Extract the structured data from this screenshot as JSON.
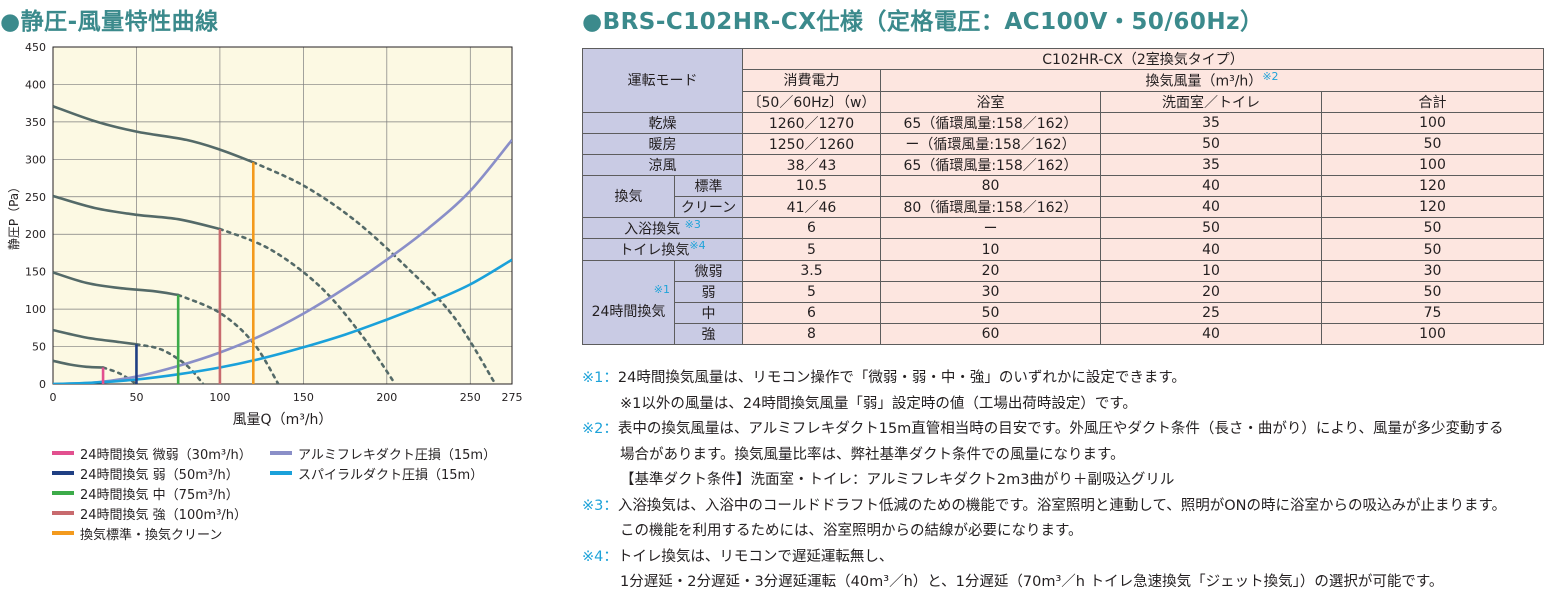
{
  "titles": {
    "chart": "●静圧-風量特性曲線",
    "spec": "●BRS-C102HR-CX仕様（定格電圧：AC100V・50/60Hz）"
  },
  "colors": {
    "plot_bg": "#fcf9e3",
    "fan_curve": "#546a68",
    "aluminum": "#8a8fc8",
    "spiral": "#1aa1da",
    "weak_min": "#e2508f",
    "weak": "#1f3f83",
    "medium": "#3cab49",
    "strong": "#c86a6e",
    "standard": "#f39a1d",
    "title": "#3b8a8c",
    "table_header": "#c9cbe4",
    "table_cell": "#fde6e0",
    "note_mark": "#1fa3d9"
  },
  "chart_data": {
    "type": "line",
    "title": "静圧-風量特性曲線",
    "xlabel": "風量Q（m³/h）",
    "ylabel": "静圧P（Pa）",
    "xlim": [
      0,
      275
    ],
    "ylim": [
      0,
      450
    ],
    "x_ticks": [
      "0",
      "50",
      "100",
      "150",
      "200",
      "250",
      "275"
    ],
    "y_ticks": [
      "0",
      "50",
      "100",
      "150",
      "200",
      "250",
      "300",
      "350",
      "400",
      "450"
    ],
    "grid": true,
    "legend_position": "bottom",
    "series": [
      {
        "name": "24時間換気 微弱（30m³/h）",
        "type": "fan",
        "color_key": "weak_min",
        "x": [
          0,
          10,
          20,
          30
        ],
        "y": [
          31,
          26,
          23,
          22
        ],
        "dashed_x": [
          30,
          40,
          50
        ],
        "dashed_y": [
          22,
          14,
          0
        ]
      },
      {
        "name": "24時間換気 弱（50m³/h）",
        "type": "fan",
        "color_key": "weak",
        "x": [
          0,
          20,
          40,
          50
        ],
        "y": [
          72,
          62,
          56,
          53
        ],
        "dashed_x": [
          50,
          65,
          80,
          90
        ],
        "dashed_y": [
          53,
          46,
          25,
          0
        ]
      },
      {
        "name": "24時間換気 中（75m³/h）",
        "type": "fan",
        "color_key": "medium",
        "x": [
          0,
          20,
          40,
          60,
          75
        ],
        "y": [
          149,
          135,
          128,
          124,
          119
        ],
        "dashed_x": [
          75,
          100,
          120,
          135
        ],
        "dashed_y": [
          119,
          95,
          55,
          0
        ]
      },
      {
        "name": "24時間換気 強（100m³/h）",
        "type": "fan",
        "color_key": "strong",
        "x": [
          0,
          25,
          50,
          75,
          100
        ],
        "y": [
          251,
          235,
          226,
          220,
          207
        ],
        "dashed_x": [
          100,
          130,
          160,
          185,
          205
        ],
        "dashed_y": [
          207,
          180,
          130,
          65,
          0
        ]
      },
      {
        "name": "換気標準・換気クリーン",
        "type": "fan",
        "color_key": "standard",
        "x": [
          0,
          25,
          50,
          80,
          100,
          120
        ],
        "y": [
          371,
          351,
          337,
          326,
          313,
          296
        ],
        "dashed_x": [
          120,
          150,
          180,
          210,
          240,
          265
        ],
        "dashed_y": [
          296,
          265,
          220,
          160,
          90,
          0
        ]
      },
      {
        "name": "アルミフレキダクト圧損（15m）",
        "type": "duct",
        "color_key": "aluminum",
        "x": [
          0,
          25,
          50,
          75,
          100,
          125,
          150,
          175,
          200,
          225,
          250,
          275
        ],
        "y": [
          0,
          2,
          10,
          24,
          42,
          65,
          94,
          128,
          166,
          208,
          258,
          326
        ]
      },
      {
        "name": "スパイラルダクト圧損（15m）",
        "type": "duct",
        "color_key": "spiral",
        "x": [
          0,
          25,
          50,
          75,
          100,
          125,
          150,
          175,
          200,
          225,
          250,
          275
        ],
        "y": [
          0,
          2,
          6,
          13,
          22,
          34,
          49,
          66,
          86,
          108,
          133,
          166
        ]
      }
    ],
    "operating_points": [
      {
        "x": 30,
        "y": 22,
        "color_key": "weak_min"
      },
      {
        "x": 50,
        "y": 53,
        "color_key": "weak"
      },
      {
        "x": 75,
        "y": 119,
        "color_key": "medium"
      },
      {
        "x": 100,
        "y": 207,
        "color_key": "strong"
      },
      {
        "x": 120,
        "y": 296,
        "color_key": "standard"
      }
    ]
  },
  "legend": {
    "left": [
      {
        "label": "24時間換気 微弱（30m³/h）",
        "color_key": "weak_min"
      },
      {
        "label": "24時間換気 弱（50m³/h）",
        "color_key": "weak"
      },
      {
        "label": "24時間換気 中（75m³/h）",
        "color_key": "medium"
      },
      {
        "label": "24時間換気 強（100m³/h）",
        "color_key": "strong"
      },
      {
        "label": "換気標準・換気クリーン",
        "color_key": "standard"
      }
    ],
    "right": [
      {
        "label": "アルミフレキダクト圧損（15m）",
        "color_key": "aluminum"
      },
      {
        "label": "スパイラルダクト圧損（15m）",
        "color_key": "spiral"
      }
    ]
  },
  "table": {
    "mode_header": "運転モード",
    "model_header": "C102HR-CX（2室換気タイプ）",
    "power_header_1": "消費電力",
    "power_header_2": "〔50／60Hz〕（w）",
    "airflow_header": "換気風量（m³/h）",
    "airflow_note": "※2",
    "col_bath": "浴室",
    "col_wash": "洗面室／トイレ",
    "col_total": "合計",
    "rows": [
      {
        "mode": "乾燥",
        "power": "1260／1270",
        "bath": "65（循環風量:158／162）",
        "wash": "35",
        "total": "100"
      },
      {
        "mode": "暖房",
        "power": "1250／1260",
        "bath": "ー（循環風量:158／162）",
        "wash": "50",
        "total": "50"
      },
      {
        "mode": "涼風",
        "power": "38／43",
        "bath": "65（循環風量:158／162）",
        "wash": "35",
        "total": "100"
      }
    ],
    "vent_group": "換気",
    "vent_rows": [
      {
        "sub": "標準",
        "power": "10.5",
        "bath": "80",
        "wash": "40",
        "total": "120"
      },
      {
        "sub": "クリーン",
        "power": "41／46",
        "bath": "80（循環風量:158／162）",
        "wash": "40",
        "total": "120"
      }
    ],
    "bath_vent": {
      "mode": "入浴換気",
      "note": "※3",
      "power": "6",
      "bath": "ー",
      "wash": "50",
      "total": "50"
    },
    "toilet_vent": {
      "mode": "トイレ換気",
      "note": "※4",
      "power": "5",
      "bath": "10",
      "wash": "40",
      "total": "50"
    },
    "h24_group": "24時間換気",
    "h24_note": "※1",
    "h24_rows": [
      {
        "sub": "微弱",
        "power": "3.5",
        "bath": "20",
        "wash": "10",
        "total": "30"
      },
      {
        "sub": "弱",
        "power": "5",
        "bath": "30",
        "wash": "20",
        "total": "50"
      },
      {
        "sub": "中",
        "power": "6",
        "bath": "50",
        "wash": "25",
        "total": "75"
      },
      {
        "sub": "強",
        "power": "8",
        "bath": "60",
        "wash": "40",
        "total": "100"
      }
    ]
  },
  "notes": [
    {
      "mark": "※1：",
      "text": "24時間換気風量は、リモコン操作で「微弱・弱・中・強」のいずれかに設定できます。",
      "indent": false
    },
    {
      "mark": "",
      "text": "※1以外の風量は、24時間換気風量「弱」設定時の値（工場出荷時設定）です。",
      "indent": true
    },
    {
      "mark": "※2：",
      "text": "表中の換気風量は、アルミフレキダクト15m直管相当時の目安です。外風圧やダクト条件（長さ・曲がり）により、風量が多少変動する",
      "indent": false
    },
    {
      "mark": "",
      "text": "場合があります。換気風量比率は、弊社基準ダクト条件での風量になります。",
      "indent": true
    },
    {
      "mark": "",
      "text": "【基準ダクト条件】洗面室・トイレ：アルミフレキダクト2m3曲がり＋副吸込グリル",
      "indent": true
    },
    {
      "mark": "※3：",
      "text": "入浴換気は、入浴中のコールドドラフト低減のための機能です。浴室照明と連動して、照明がONの時に浴室からの吸込みが止まります。",
      "indent": false
    },
    {
      "mark": "",
      "text": "この機能を利用するためには、浴室照明からの結線が必要になります。",
      "indent": true
    },
    {
      "mark": "※4：",
      "text": "トイレ換気は、リモコンで遅延運転無し、",
      "indent": false
    },
    {
      "mark": "",
      "text": "1分遅延・2分遅延・3分遅延運転（40m³／h）と、1分遅延（70m³／h トイレ急速換気「ジェット換気」）の選択が可能です。",
      "indent": true
    }
  ]
}
